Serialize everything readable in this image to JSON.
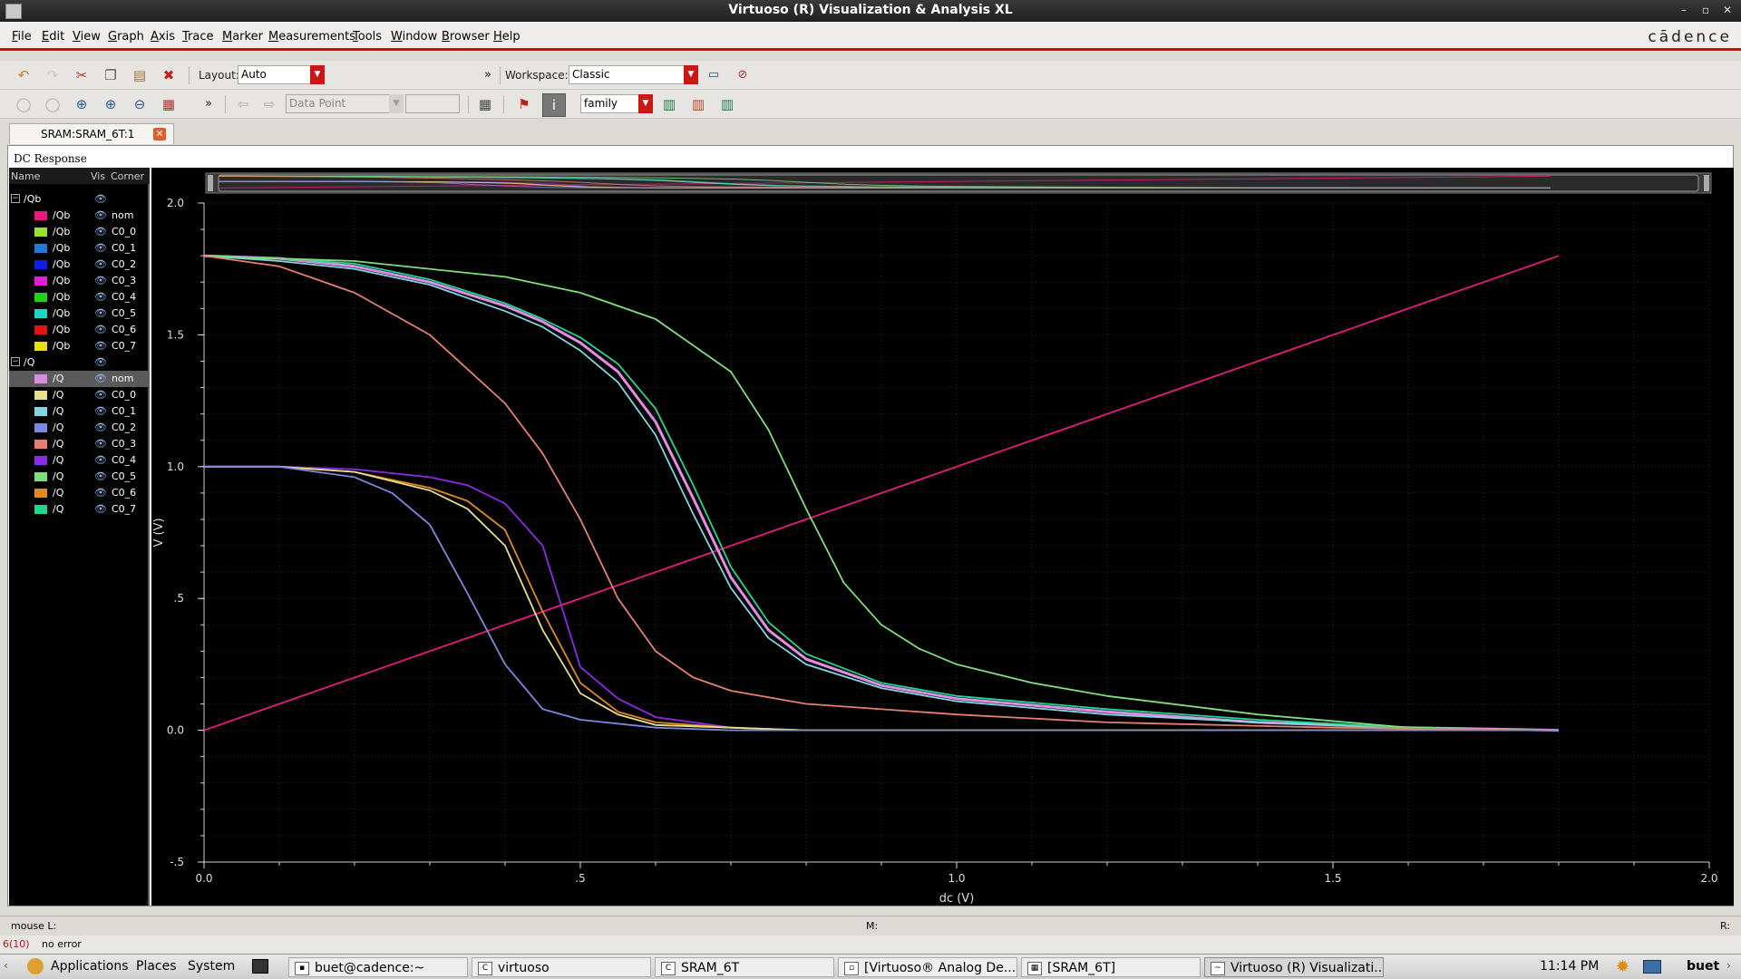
{
  "window": {
    "title": "Virtuoso (R) Visualization & Analysis XL"
  },
  "menu": [
    "File",
    "Edit",
    "View",
    "Graph",
    "Axis",
    "Trace",
    "Marker",
    "Measurements",
    "Tools",
    "Window",
    "Browser",
    "Help"
  ],
  "brand": "cādence",
  "toolbar1": {
    "layout_label": "Layout:",
    "layout_value": "Auto",
    "workspace_label": "Workspace:",
    "workspace_value": "Classic"
  },
  "toolbar2": {
    "datapoint_value": "Data Point",
    "family_value": "family"
  },
  "tab": {
    "label": "SRAM:SRAM_6T:1"
  },
  "plot_header": "DC Response",
  "legend": {
    "col_name": "Name",
    "col_vis": "Vis",
    "col_corner": "Corner",
    "groups": [
      {
        "name": "/Qb",
        "items": [
          {
            "name": "/Qb",
            "corner": "nom",
            "color": "#e8197e"
          },
          {
            "name": "/Qb",
            "corner": "C0_0",
            "color": "#9be02a"
          },
          {
            "name": "/Qb",
            "corner": "C0_1",
            "color": "#1e7bd6"
          },
          {
            "name": "/Qb",
            "corner": "C0_2",
            "color": "#0b1fe6"
          },
          {
            "name": "/Qb",
            "corner": "C0_3",
            "color": "#e020d8"
          },
          {
            "name": "/Qb",
            "corner": "C0_4",
            "color": "#1ed21e"
          },
          {
            "name": "/Qb",
            "corner": "C0_5",
            "color": "#18d8c8"
          },
          {
            "name": "/Qb",
            "corner": "C0_6",
            "color": "#e01414"
          },
          {
            "name": "/Qb",
            "corner": "C0_7",
            "color": "#e6e010"
          }
        ]
      },
      {
        "name": "/Q",
        "items": [
          {
            "name": "/Q",
            "corner": "nom",
            "color": "#d88ce0"
          },
          {
            "name": "/Q",
            "corner": "C0_0",
            "color": "#e6e08c"
          },
          {
            "name": "/Q",
            "corner": "C0_1",
            "color": "#7fd8e0"
          },
          {
            "name": "/Q",
            "corner": "C0_2",
            "color": "#7a8ae0"
          },
          {
            "name": "/Q",
            "corner": "C0_3",
            "color": "#e68070"
          },
          {
            "name": "/Q",
            "corner": "C0_4",
            "color": "#8a2be6"
          },
          {
            "name": "/Q",
            "corner": "C0_5",
            "color": "#7fe07a"
          },
          {
            "name": "/Q",
            "corner": "C0_6",
            "color": "#e08a1e"
          },
          {
            "name": "/Q",
            "corner": "C0_7",
            "color": "#1ed890"
          }
        ]
      }
    ]
  },
  "chart_data": {
    "type": "line",
    "title": "",
    "xlabel": "dc (V)",
    "ylabel": "V (V)",
    "xlim": [
      0,
      2.0
    ],
    "ylim": [
      -0.5,
      2.0
    ],
    "xticks": [
      {
        "v": 0,
        "t": "0.0"
      },
      {
        "v": 0.5,
        "t": ".5"
      },
      {
        "v": 1.0,
        "t": "1.0"
      },
      {
        "v": 1.5,
        "t": "1.5"
      },
      {
        "v": 2.0,
        "t": "2.0"
      }
    ],
    "yticks": [
      {
        "v": -0.5,
        "t": "-.5"
      },
      {
        "v": 0,
        "t": "0.0"
      },
      {
        "v": 0.5,
        "t": ".5"
      },
      {
        "v": 1.0,
        "t": "1.0"
      },
      {
        "v": 1.5,
        "t": "1.5"
      },
      {
        "v": 2.0,
        "t": "2.0"
      }
    ],
    "grid": true,
    "series": [
      {
        "name": "/Qb nom",
        "color": "#e8197e",
        "x": [
          0,
          1.8
        ],
        "y": [
          0,
          1.8
        ]
      },
      {
        "name": "/Q nom",
        "color": "#e28ce8",
        "width": 3,
        "x": [
          0,
          0.1,
          0.2,
          0.3,
          0.4,
          0.45,
          0.5,
          0.55,
          0.6,
          0.65,
          0.7,
          0.75,
          0.8,
          0.9,
          1.0,
          1.2,
          1.4,
          1.6,
          1.8
        ],
        "y": [
          1.8,
          1.79,
          1.76,
          1.7,
          1.61,
          1.55,
          1.47,
          1.36,
          1.17,
          0.88,
          0.58,
          0.38,
          0.27,
          0.17,
          0.12,
          0.07,
          0.03,
          0.01,
          0.0
        ]
      },
      {
        "name": "/Q C0_1",
        "color": "#7fd8e0",
        "x": [
          0,
          0.1,
          0.2,
          0.3,
          0.4,
          0.45,
          0.5,
          0.55,
          0.6,
          0.65,
          0.7,
          0.75,
          0.8,
          0.9,
          1.0,
          1.2,
          1.4,
          1.6,
          1.8
        ],
        "y": [
          1.8,
          1.78,
          1.75,
          1.69,
          1.59,
          1.53,
          1.44,
          1.32,
          1.12,
          0.82,
          0.54,
          0.35,
          0.25,
          0.16,
          0.11,
          0.06,
          0.03,
          0.01,
          0.0
        ]
      },
      {
        "name": "/Q C0_7",
        "color": "#1ed890",
        "x": [
          0,
          0.1,
          0.2,
          0.3,
          0.4,
          0.45,
          0.5,
          0.55,
          0.6,
          0.65,
          0.7,
          0.75,
          0.8,
          0.9,
          1.0,
          1.2,
          1.4,
          1.6,
          1.8
        ],
        "y": [
          1.8,
          1.79,
          1.77,
          1.71,
          1.62,
          1.56,
          1.49,
          1.39,
          1.22,
          0.93,
          0.62,
          0.41,
          0.29,
          0.18,
          0.13,
          0.08,
          0.04,
          0.01,
          0.0
        ]
      },
      {
        "name": "/Q C0_5",
        "color": "#7fe07a",
        "x": [
          0,
          0.2,
          0.4,
          0.5,
          0.6,
          0.7,
          0.75,
          0.8,
          0.85,
          0.9,
          0.95,
          1.0,
          1.1,
          1.2,
          1.4,
          1.6,
          1.8
        ],
        "y": [
          1.8,
          1.78,
          1.72,
          1.66,
          1.56,
          1.36,
          1.14,
          0.84,
          0.56,
          0.4,
          0.31,
          0.25,
          0.18,
          0.13,
          0.06,
          0.01,
          0.0
        ]
      },
      {
        "name": "/Q C0_3",
        "color": "#e68070",
        "x": [
          0,
          0.1,
          0.2,
          0.3,
          0.4,
          0.45,
          0.5,
          0.55,
          0.6,
          0.65,
          0.7,
          0.8,
          1.0,
          1.2,
          1.5,
          1.8
        ],
        "y": [
          1.8,
          1.76,
          1.66,
          1.5,
          1.24,
          1.05,
          0.8,
          0.5,
          0.3,
          0.2,
          0.15,
          0.1,
          0.06,
          0.03,
          0.01,
          0.0
        ]
      },
      {
        "name": "/Qb C0_4",
        "color": "#8a2be6",
        "x": [
          0,
          0.1,
          0.2,
          0.3,
          0.35,
          0.4,
          0.45,
          0.5,
          0.55,
          0.6,
          0.7,
          0.8,
          1.0,
          1.8
        ],
        "y": [
          1.0,
          1.0,
          0.99,
          0.96,
          0.93,
          0.86,
          0.7,
          0.24,
          0.12,
          0.05,
          0.01,
          0,
          0,
          0
        ]
      },
      {
        "name": "/Qb C0_6",
        "color": "#e08a1e",
        "x": [
          0,
          0.1,
          0.2,
          0.3,
          0.35,
          0.4,
          0.45,
          0.5,
          0.55,
          0.6,
          0.7,
          0.8,
          1.0,
          1.8
        ],
        "y": [
          1.0,
          1.0,
          0.98,
          0.92,
          0.87,
          0.76,
          0.45,
          0.18,
          0.07,
          0.03,
          0.01,
          0,
          0,
          0
        ]
      },
      {
        "name": "/Qb C0_0",
        "color": "#e6e08c",
        "x": [
          0,
          0.1,
          0.2,
          0.3,
          0.35,
          0.4,
          0.45,
          0.5,
          0.55,
          0.6,
          0.7,
          0.8,
          1.0,
          1.8
        ],
        "y": [
          1.0,
          1.0,
          0.98,
          0.91,
          0.84,
          0.7,
          0.38,
          0.14,
          0.06,
          0.02,
          0.01,
          0,
          0,
          0
        ]
      },
      {
        "name": "/Qb C0_2",
        "color": "#7a8ae0",
        "x": [
          0,
          0.1,
          0.2,
          0.25,
          0.3,
          0.35,
          0.4,
          0.45,
          0.5,
          0.6,
          0.7,
          0.8,
          1.8
        ],
        "y": [
          1.0,
          1.0,
          0.96,
          0.9,
          0.78,
          0.52,
          0.25,
          0.08,
          0.04,
          0.01,
          0,
          0,
          0
        ]
      }
    ]
  },
  "status": {
    "mouse_l": "mouse L:",
    "m": "M:",
    "r": "R:",
    "count": "6(10)",
    "message": "no error"
  },
  "taskbar": {
    "applications": "Applications",
    "places": "Places",
    "system": "System",
    "tasks": [
      "buet@cadence:~",
      "virtuoso",
      "SRAM_6T",
      "[Virtuoso® Analog De...",
      "[SRAM_6T]",
      "Virtuoso (R) Visualizati..."
    ],
    "clock": "11:14 PM",
    "user": "buet"
  }
}
